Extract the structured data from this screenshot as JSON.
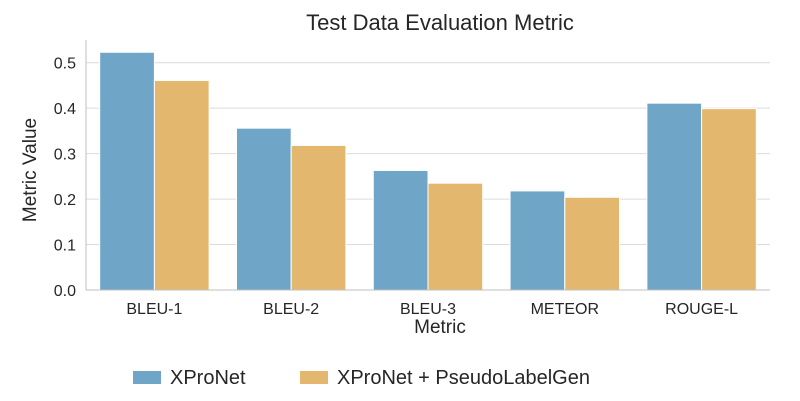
{
  "chart_data": {
    "type": "bar",
    "title": "Test Data Evaluation Metric",
    "xlabel": "Metric",
    "ylabel": "Metric Value",
    "categories": [
      "BLEU-1",
      "BLEU-2",
      "BLEU-3",
      "METEOR",
      "ROUGE-L"
    ],
    "series": [
      {
        "name": "XProNet",
        "color": "#6fa6c8",
        "values": [
          0.523,
          0.356,
          0.263,
          0.218,
          0.411
        ]
      },
      {
        "name": "XProNet + PseudoLabelGen",
        "color": "#e3b86e",
        "values": [
          0.461,
          0.318,
          0.235,
          0.204,
          0.399
        ]
      }
    ],
    "ylim": [
      0,
      0.55
    ],
    "yticks": [
      0.0,
      0.1,
      0.2,
      0.3,
      0.4,
      0.5
    ],
    "ytick_labels": [
      "0.0",
      "0.1",
      "0.2",
      "0.3",
      "0.4",
      "0.5"
    ],
    "grid": true,
    "legend_position": "bottom"
  }
}
